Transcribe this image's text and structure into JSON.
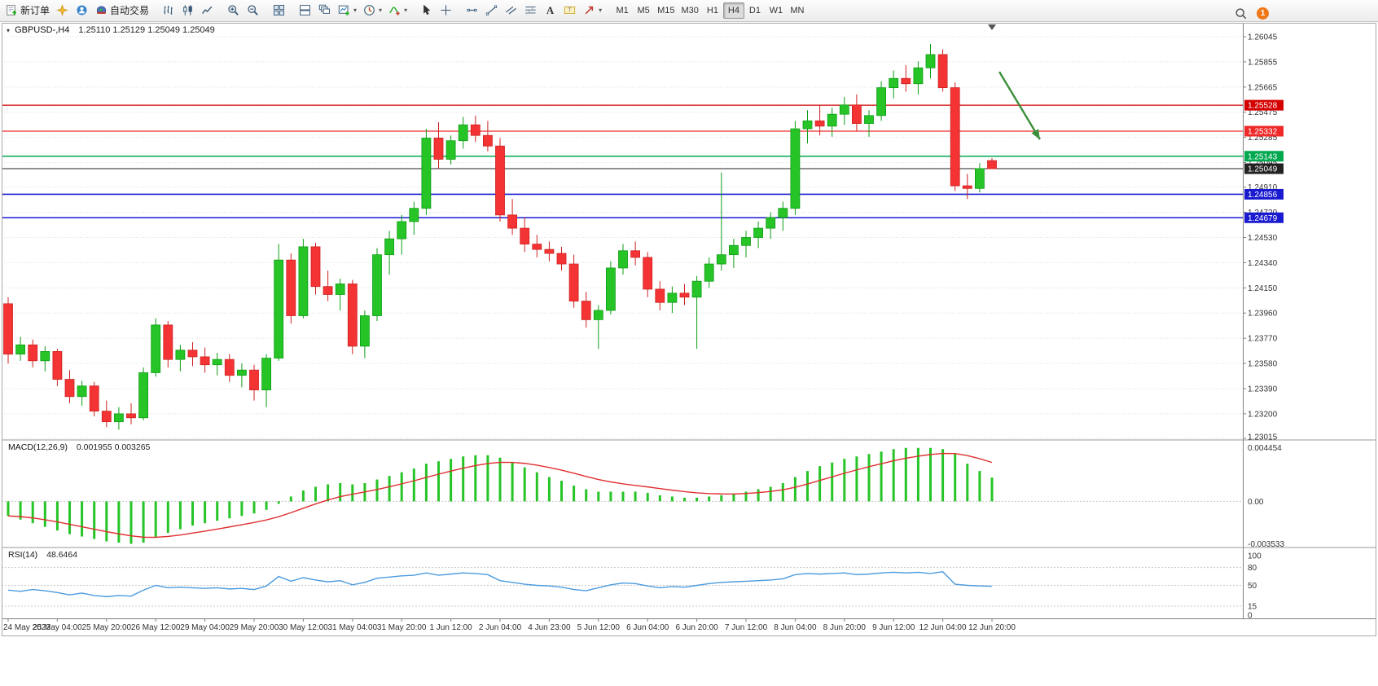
{
  "toolbar": {
    "notification_count": "1",
    "active_timeframe": "H4",
    "timeframes": [
      "M1",
      "M5",
      "M15",
      "M30",
      "H1",
      "H4",
      "D1",
      "W1",
      "MN"
    ],
    "buttons": [
      {
        "name": "new-order",
        "label": "新订单",
        "icon": "new-order-icon"
      },
      {
        "name": "mql5-wizard",
        "icon": "wizard-icon"
      },
      {
        "name": "community",
        "icon": "community-icon"
      },
      {
        "name": "autotrading",
        "label": "自动交易",
        "icon": "autotrading-icon",
        "sep_after": true
      },
      {
        "name": "bar-chart",
        "icon": "bar-chart-icon"
      },
      {
        "name": "candlestick-chart",
        "icon": "candlestick-icon"
      },
      {
        "name": "line-chart",
        "icon": "line-chart-icon",
        "sep_after": true
      },
      {
        "name": "zoom-in",
        "icon": "zoom-in-icon"
      },
      {
        "name": "zoom-out",
        "icon": "zoom-out-icon",
        "sep_after": true
      },
      {
        "name": "tile-windows",
        "icon": "tile-windows-icon",
        "sep_after": true
      },
      {
        "name": "arrange-windows",
        "icon": "arrange-windows-icon"
      },
      {
        "name": "cascade-windows",
        "icon": "cascade-windows-icon"
      },
      {
        "name": "new-chart",
        "icon": "new-chart-icon",
        "dropdown": true
      },
      {
        "name": "periods",
        "icon": "clock-icon",
        "dropdown": true
      },
      {
        "name": "indicators",
        "icon": "indicators-icon",
        "dropdown": true,
        "sep_after": true
      },
      {
        "name": "cursor",
        "icon": "cursor-icon"
      },
      {
        "name": "crosshair",
        "icon": "crosshair-icon",
        "sep_after": true
      },
      {
        "name": "horizontal-line",
        "icon": "horizontal-line-icon"
      },
      {
        "name": "trendline",
        "icon": "trendline-icon"
      },
      {
        "name": "equidistant-channel",
        "icon": "channel-icon"
      },
      {
        "name": "fibonacci",
        "icon": "fibonacci-icon"
      },
      {
        "name": "text",
        "icon": "text-icon"
      },
      {
        "name": "text-label",
        "icon": "text-label-icon"
      },
      {
        "name": "arrows",
        "icon": "arrow-tools-icon",
        "dropdown": true,
        "sep_after": true
      }
    ],
    "right_buttons": [
      {
        "name": "search",
        "icon": "search-icon"
      }
    ]
  },
  "chart_header": {
    "symbol_period": "GBPUSD-,H4",
    "ohlc": "1.25110 1.25129 1.25049 1.25049"
  },
  "indicator_macd": {
    "name": "MACD(12,26,9)",
    "values": "0.001955 0.003265"
  },
  "indicator_rsi": {
    "name": "RSI(14)",
    "values": "48.6464"
  },
  "chart_data": {
    "type": "candlestick",
    "symbol": "GBPUSD-",
    "period": "H4",
    "current": {
      "open": 1.2511,
      "high": 1.25129,
      "low": 1.25049,
      "close": 1.25049
    },
    "ylim": [
      1.23015,
      1.26045
    ],
    "up_color": "#27c427",
    "down_color": "#f43434",
    "up_stroke": "#0e9e16",
    "down_stroke": "#cf2020",
    "price_ticks": [
      "1.26045",
      "1.25855",
      "1.25665",
      "1.25475",
      "1.25285",
      "1.25095",
      "1.24910",
      "1.24720",
      "1.24530",
      "1.24340",
      "1.24150",
      "1.23960",
      "1.23770",
      "1.23580",
      "1.23390",
      "1.23200",
      "1.23015"
    ],
    "time_label_step": 4,
    "time_labels": [
      "24 May 2023",
      "25 May 04:00",
      "25 May 20:00",
      "26 May 12:00",
      "29 May 04:00",
      "29 May 20:00",
      "30 May 12:00",
      "31 May 04:00",
      "31 May 20:00",
      "1 Jun 12:00",
      "2 Jun 04:00",
      "4 Jun 23:00",
      "5 Jun 12:00",
      "6 Jun 04:00",
      "6 Jun 20:00",
      "7 Jun 12:00",
      "8 Jun 04:00",
      "8 Jun 20:00",
      "9 Jun 12:00",
      "12 Jun 04:00",
      "12 Jun 20:00"
    ],
    "hlines": [
      {
        "price": 1.25528,
        "label": "1.25528",
        "color": "#d40000",
        "width": 1.2
      },
      {
        "price": 1.25332,
        "label": "1.25332",
        "color": "#ef2929",
        "width": 1.2
      },
      {
        "price": 1.25143,
        "label": "1.25143",
        "color": "#00a84f",
        "width": 1.5
      },
      {
        "price": 1.25049,
        "label": "1.25049",
        "color": "#222222",
        "width": 1,
        "role": "bid"
      },
      {
        "price": 1.24856,
        "label": "1.24856",
        "color": "#1a1ad0",
        "width": 1.6
      },
      {
        "price": 1.24679,
        "label": "1.24679",
        "color": "#1a1ad0",
        "width": 1.6
      }
    ],
    "trend_arrow": {
      "from_bar": 80.6,
      "from_price": 1.2578,
      "to_bar": 83.9,
      "to_price": 1.2527,
      "color": "#3a8f3a"
    },
    "candles": [
      [
        1.2403,
        1.2408,
        1.2358,
        1.2365
      ],
      [
        1.2365,
        1.2378,
        1.236,
        1.2372
      ],
      [
        1.2372,
        1.2376,
        1.2355,
        1.236
      ],
      [
        1.236,
        1.2371,
        1.2352,
        1.2367
      ],
      [
        1.2367,
        1.2369,
        1.2341,
        1.2346
      ],
      [
        1.2346,
        1.2353,
        1.2328,
        1.2333
      ],
      [
        1.2333,
        1.2345,
        1.2326,
        1.2341
      ],
      [
        1.2341,
        1.2344,
        1.2318,
        1.2322
      ],
      [
        1.2322,
        1.233,
        1.231,
        1.2314
      ],
      [
        1.2314,
        1.2325,
        1.2308,
        1.232
      ],
      [
        1.232,
        1.2328,
        1.2312,
        1.2317
      ],
      [
        1.2317,
        1.2355,
        1.2315,
        1.2351
      ],
      [
        1.2351,
        1.2392,
        1.2348,
        1.2387
      ],
      [
        1.2387,
        1.239,
        1.2355,
        1.2361
      ],
      [
        1.2361,
        1.2372,
        1.2352,
        1.2368
      ],
      [
        1.2368,
        1.2374,
        1.2356,
        1.2363
      ],
      [
        1.2363,
        1.237,
        1.2351,
        1.2357
      ],
      [
        1.2357,
        1.2366,
        1.2349,
        1.2361
      ],
      [
        1.2361,
        1.2365,
        1.2344,
        1.2349
      ],
      [
        1.2349,
        1.2358,
        1.234,
        1.2353
      ],
      [
        1.2353,
        1.2357,
        1.233,
        1.2338
      ],
      [
        1.2338,
        1.2365,
        1.2325,
        1.2362
      ],
      [
        1.2362,
        1.2448,
        1.236,
        1.2436
      ],
      [
        1.2436,
        1.2441,
        1.2388,
        1.2394
      ],
      [
        1.2394,
        1.2452,
        1.2392,
        1.2446
      ],
      [
        1.2446,
        1.2449,
        1.241,
        1.2416
      ],
      [
        1.2416,
        1.2428,
        1.2405,
        1.241
      ],
      [
        1.241,
        1.2422,
        1.2398,
        1.2418
      ],
      [
        1.2418,
        1.2421,
        1.2365,
        1.2371
      ],
      [
        1.2371,
        1.2398,
        1.2362,
        1.2394
      ],
      [
        1.2394,
        1.2445,
        1.239,
        1.244
      ],
      [
        1.244,
        1.2458,
        1.2425,
        1.2452
      ],
      [
        1.2452,
        1.247,
        1.244,
        1.2465
      ],
      [
        1.2465,
        1.248,
        1.2455,
        1.2475
      ],
      [
        1.2475,
        1.2535,
        1.247,
        1.2528
      ],
      [
        1.2528,
        1.254,
        1.2505,
        1.2512
      ],
      [
        1.2512,
        1.253,
        1.2508,
        1.2526
      ],
      [
        1.2526,
        1.2544,
        1.252,
        1.2538
      ],
      [
        1.2538,
        1.2545,
        1.2525,
        1.253
      ],
      [
        1.253,
        1.2541,
        1.2518,
        1.2522
      ],
      [
        1.2522,
        1.2528,
        1.2465,
        1.247
      ],
      [
        1.247,
        1.2482,
        1.2455,
        1.246
      ],
      [
        1.246,
        1.2468,
        1.2442,
        1.2448
      ],
      [
        1.2448,
        1.2455,
        1.2438,
        1.2444
      ],
      [
        1.2444,
        1.245,
        1.2435,
        1.2441
      ],
      [
        1.2441,
        1.2446,
        1.2428,
        1.2433
      ],
      [
        1.2433,
        1.244,
        1.24,
        1.2405
      ],
      [
        1.2405,
        1.2412,
        1.2385,
        1.2391
      ],
      [
        1.2391,
        1.2402,
        1.2369,
        1.2398
      ],
      [
        1.2398,
        1.2435,
        1.2395,
        1.243
      ],
      [
        1.243,
        1.2448,
        1.2425,
        1.2443
      ],
      [
        1.2443,
        1.245,
        1.2432,
        1.2438
      ],
      [
        1.2438,
        1.2442,
        1.2408,
        1.2414
      ],
      [
        1.2414,
        1.242,
        1.2398,
        1.2404
      ],
      [
        1.2404,
        1.2416,
        1.2396,
        1.2411
      ],
      [
        1.2411,
        1.2418,
        1.2402,
        1.2408
      ],
      [
        1.2408,
        1.2424,
        1.2369,
        1.242
      ],
      [
        1.242,
        1.2438,
        1.2415,
        1.2433
      ],
      [
        1.2433,
        1.2502,
        1.2428,
        1.244
      ],
      [
        1.244,
        1.2452,
        1.243,
        1.2447
      ],
      [
        1.2447,
        1.2458,
        1.2438,
        1.2453
      ],
      [
        1.2453,
        1.2465,
        1.2445,
        1.246
      ],
      [
        1.246,
        1.2472,
        1.2452,
        1.2468
      ],
      [
        1.2468,
        1.248,
        1.2458,
        1.2475
      ],
      [
        1.2475,
        1.2541,
        1.247,
        1.2535
      ],
      [
        1.2535,
        1.2549,
        1.2524,
        1.2541
      ],
      [
        1.2541,
        1.2553,
        1.253,
        1.2537
      ],
      [
        1.2537,
        1.2551,
        1.2529,
        1.2546
      ],
      [
        1.2546,
        1.2559,
        1.2538,
        1.2553
      ],
      [
        1.2553,
        1.2561,
        1.2533,
        1.2539
      ],
      [
        1.2539,
        1.2549,
        1.2529,
        1.2545
      ],
      [
        1.2545,
        1.2571,
        1.2541,
        1.2566
      ],
      [
        1.2566,
        1.2579,
        1.2558,
        1.2573
      ],
      [
        1.2573,
        1.2583,
        1.2563,
        1.2569
      ],
      [
        1.2569,
        1.2586,
        1.2561,
        1.2581
      ],
      [
        1.2581,
        1.2599,
        1.2573,
        1.2591
      ],
      [
        1.2591,
        1.2595,
        1.2563,
        1.2566
      ],
      [
        1.2566,
        1.257,
        1.2488,
        1.2492
      ],
      [
        1.2492,
        1.2501,
        1.2482,
        1.249
      ],
      [
        1.249,
        1.2509,
        1.2487,
        1.2505
      ],
      [
        1.2511,
        1.25129,
        1.25049,
        1.25049
      ]
    ],
    "macd": {
      "label": "MACD(12,26,9)",
      "value_main": "0.001955",
      "value_signal": "0.003265",
      "axis_max": 0.004454,
      "axis_min": -0.003533,
      "axis_labels": [
        "0.004454",
        "0.00",
        "-0.003533"
      ],
      "histogram_color": "#27c427",
      "signal_color": "#e03030",
      "main": [
        -0.0012,
        -0.0015,
        -0.0018,
        -0.0021,
        -0.0024,
        -0.0027,
        -0.0029,
        -0.0031,
        -0.0033,
        -0.0034,
        -0.0035,
        -0.0034,
        -0.003,
        -0.0026,
        -0.0023,
        -0.002,
        -0.0018,
        -0.0016,
        -0.0014,
        -0.0012,
        -0.001,
        -0.0007,
        -0.0002,
        0.0004,
        0.0009,
        0.0012,
        0.0014,
        0.0015,
        0.0014,
        0.0015,
        0.0018,
        0.0021,
        0.0024,
        0.0027,
        0.0031,
        0.0033,
        0.0035,
        0.0037,
        0.0038,
        0.0038,
        0.0036,
        0.0032,
        0.0028,
        0.0024,
        0.002,
        0.0017,
        0.0013,
        0.001,
        0.0008,
        0.0008,
        0.0008,
        0.0008,
        0.0007,
        0.0005,
        0.0004,
        0.0003,
        0.0003,
        0.0004,
        0.0005,
        0.0006,
        0.0008,
        0.001,
        0.0012,
        0.0015,
        0.002,
        0.0025,
        0.0029,
        0.0032,
        0.0035,
        0.0037,
        0.0039,
        0.0041,
        0.0043,
        0.0044,
        0.0044,
        0.0044,
        0.0043,
        0.0039,
        0.0031,
        0.0025,
        0.00196
      ]
    },
    "rsi": {
      "label": "RSI(14)",
      "value": "48.6464",
      "line_color": "#4b9bdf",
      "axis_values": [
        100,
        80,
        50,
        15,
        0
      ],
      "levels": [
        80,
        50,
        15
      ],
      "values": [
        42,
        40,
        43,
        41,
        38,
        34,
        37,
        33,
        31,
        33,
        32,
        42,
        50,
        46,
        47,
        46,
        45,
        46,
        44,
        45,
        43,
        49,
        65,
        57,
        63,
        59,
        56,
        58,
        51,
        55,
        62,
        64,
        66,
        67,
        71,
        67,
        69,
        71,
        70,
        68,
        58,
        55,
        52,
        50,
        49,
        47,
        43,
        41,
        46,
        51,
        54,
        53,
        49,
        46,
        48,
        47,
        50,
        53,
        55,
        56,
        57,
        58,
        59,
        61,
        68,
        70,
        69,
        70,
        71,
        68,
        69,
        71,
        72,
        71,
        72,
        70,
        73,
        52,
        50,
        49,
        48.6
      ]
    }
  }
}
